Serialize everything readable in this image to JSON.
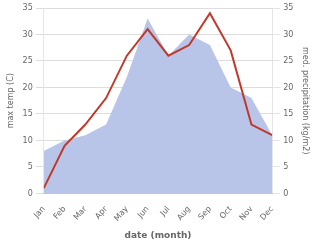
{
  "chart_data": {
    "type": "line",
    "xlabel": "date (month)",
    "ylabel": "max temp (C)",
    "y2label": "med. precipitation (kg/m2)",
    "categories": [
      "Jan",
      "Feb",
      "Mar",
      "Apr",
      "May",
      "Jun",
      "Jul",
      "Aug",
      "Sep",
      "Oct",
      "Nov",
      "Dec"
    ],
    "series": [
      {
        "type": "area",
        "axis": "y2",
        "color": "#b8c4e8",
        "values": [
          8,
          10,
          11,
          13,
          22,
          33,
          26,
          30,
          28,
          20,
          18,
          11
        ]
      },
      {
        "type": "line",
        "color": "#c0392b",
        "values": [
          1,
          9,
          13,
          18,
          26,
          31,
          26,
          28,
          34,
          27,
          13,
          11
        ]
      }
    ],
    "ylim": [
      0,
      35
    ],
    "yticks": [
      0,
      5,
      10,
      15,
      20,
      25,
      30,
      35
    ],
    "y2lim": [
      0,
      35
    ],
    "y2ticks": [
      0,
      5,
      10,
      15,
      20,
      25,
      30,
      35
    ],
    "grid": true
  }
}
